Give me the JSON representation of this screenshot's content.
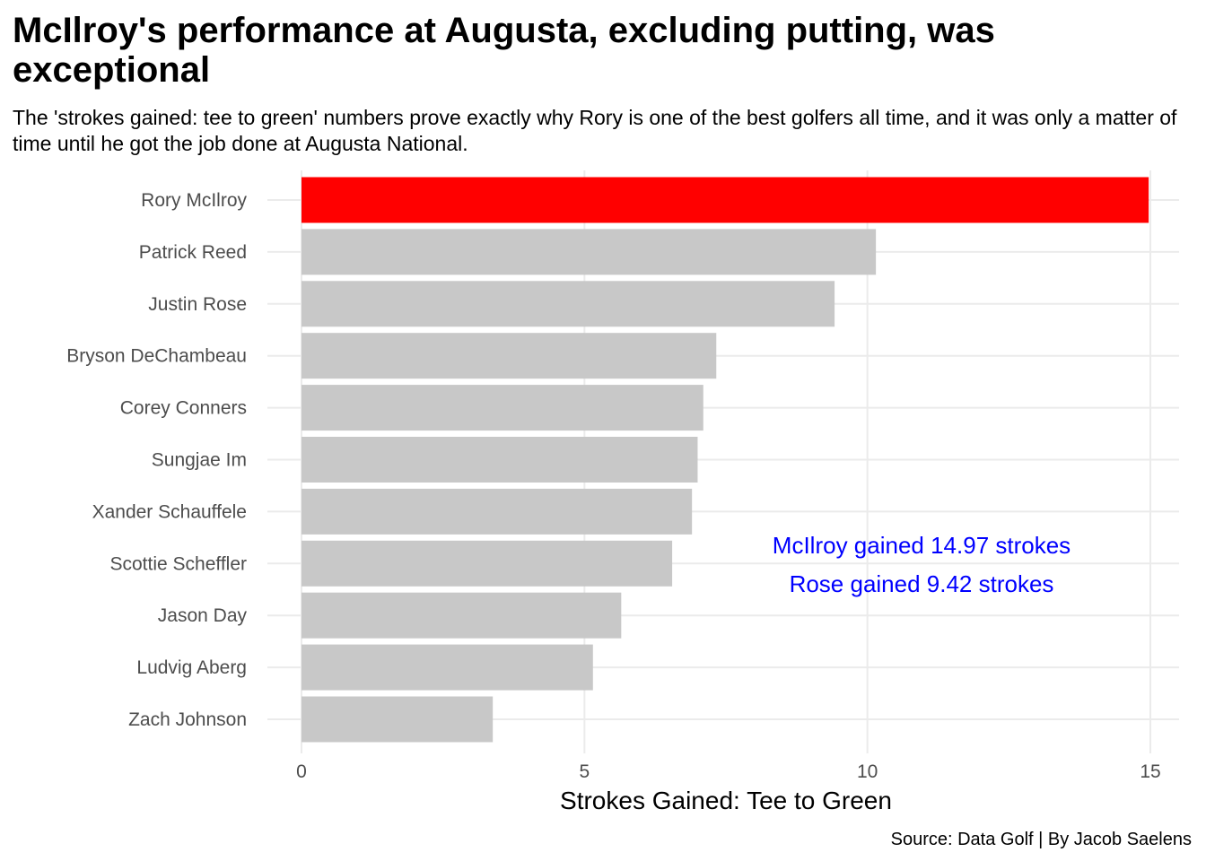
{
  "colors": {
    "highlight": "#ff0000",
    "bar": "#c8c8c8",
    "grid": "#ebebeb",
    "annotation": "#0000ff"
  },
  "chart_data": {
    "type": "bar",
    "orientation": "horizontal",
    "title": "McIlroy's performance at Augusta, excluding putting, was exceptional",
    "subtitle": "The 'strokes gained: tee to green' numbers prove exactly why Rory is one of the best golfers all time, and it was only a matter of time until he got the job done at Augusta National.",
    "xlabel": "Strokes Gained: Tee to Green",
    "ylabel": "",
    "caption": "Source: Data Golf | By Jacob Saelens",
    "xlim": [
      0,
      15
    ],
    "x_ticks": [
      0,
      5,
      10,
      15
    ],
    "grid": true,
    "legend": "none",
    "highlight_category": "Rory McIlroy",
    "categories": [
      "Rory McIlroy",
      "Patrick Reed",
      "Justin Rose",
      "Bryson DeChambeau",
      "Corey Conners",
      "Sungjae Im",
      "Xander Schauffele",
      "Scottie Scheffler",
      "Jason Day",
      "Ludvig Aberg",
      "Zach Johnson"
    ],
    "values": [
      14.97,
      10.15,
      9.42,
      7.33,
      7.1,
      7.0,
      6.9,
      6.55,
      5.65,
      5.15,
      3.38
    ],
    "annotations": [
      "McIlroy gained 14.97 strokes",
      "Rose gained 9.42 strokes"
    ]
  }
}
